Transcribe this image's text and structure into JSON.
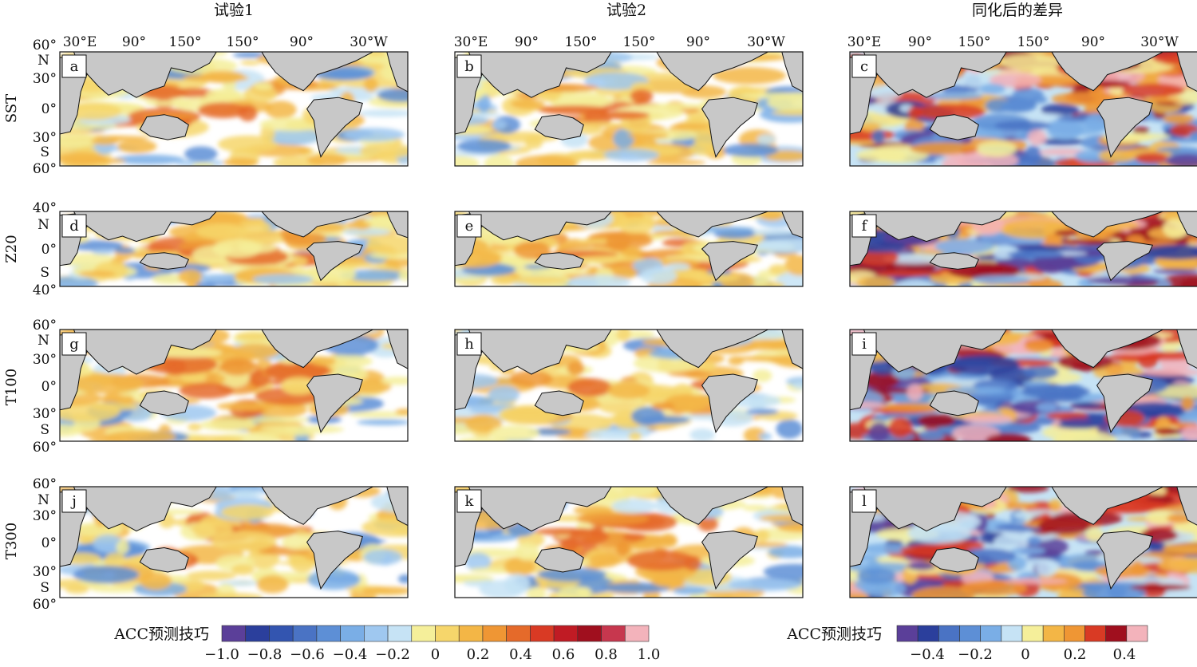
{
  "figure": {
    "column_titles": [
      "试验1",
      "试验2",
      "同化后的差异"
    ],
    "row_labels": [
      "SST",
      "Z20",
      "T100",
      "T300"
    ],
    "lon_ticks": [
      "30°E",
      "90°",
      "150°",
      "150°",
      "90°",
      "30°W"
    ],
    "lat_ticks_60": [
      "60°",
      "N",
      "30°",
      "0°",
      "30°",
      "S",
      "60°"
    ],
    "lat_ticks_40": [
      "40°",
      "N",
      "0°",
      "S",
      "40°"
    ],
    "panel_letters": [
      "a",
      "b",
      "c",
      "d",
      "e",
      "f",
      "g",
      "h",
      "i",
      "j",
      "k",
      "l"
    ]
  },
  "chart_data": {
    "type": "heatmap",
    "panels": [
      {
        "letter": "a",
        "row": "SST",
        "column": "试验1",
        "lat_range": [
          -60,
          60
        ]
      },
      {
        "letter": "b",
        "row": "SST",
        "column": "试验2",
        "lat_range": [
          -60,
          60
        ]
      },
      {
        "letter": "c",
        "row": "SST",
        "column": "同化后的差异",
        "lat_range": [
          -60,
          60
        ]
      },
      {
        "letter": "d",
        "row": "Z20",
        "column": "试验1",
        "lat_range": [
          -40,
          40
        ]
      },
      {
        "letter": "e",
        "row": "Z20",
        "column": "试验2",
        "lat_range": [
          -40,
          40
        ]
      },
      {
        "letter": "f",
        "row": "Z20",
        "column": "同化后的差异",
        "lat_range": [
          -40,
          40
        ]
      },
      {
        "letter": "g",
        "row": "T100",
        "column": "试验1",
        "lat_range": [
          -60,
          60
        ]
      },
      {
        "letter": "h",
        "row": "T100",
        "column": "试验2",
        "lat_range": [
          -60,
          60
        ]
      },
      {
        "letter": "i",
        "row": "T100",
        "column": "同化后的差异",
        "lat_range": [
          -60,
          60
        ]
      },
      {
        "letter": "j",
        "row": "T300",
        "column": "试验1",
        "lat_range": [
          -60,
          60
        ]
      },
      {
        "letter": "k",
        "row": "T300",
        "column": "试验2",
        "lat_range": [
          -60,
          60
        ]
      },
      {
        "letter": "l",
        "row": "T300",
        "column": "同化后的差异",
        "lat_range": [
          -60,
          60
        ]
      }
    ],
    "colorbar_skill": {
      "label": "ACC预测技巧",
      "tick_labels": [
        "−1.0",
        "−0.8",
        "−0.6",
        "−0.4",
        "−0.2",
        "0",
        "0.2",
        "0.4",
        "0.6",
        "0.8",
        "1.0"
      ],
      "range": [
        -1.0,
        1.0
      ],
      "colors": [
        "#5b3f99",
        "#2b3f9c",
        "#3355b0",
        "#4a73c4",
        "#5d8fd6",
        "#7aaee6",
        "#9fc8f0",
        "#c6e3f5",
        "#f5ef9a",
        "#f6d66b",
        "#f3b646",
        "#ef9634",
        "#e56a2a",
        "#d93a24",
        "#c01b24",
        "#a00f1e",
        "#c7374e",
        "#f3b3bb"
      ]
    },
    "colorbar_diff": {
      "label": "ACC预测技巧",
      "tick_labels": [
        "−0.4",
        "−0.2",
        "0",
        "0.2",
        "0.4"
      ],
      "range": [
        -0.5,
        0.5
      ],
      "colors": [
        "#5b3f99",
        "#2b3f9c",
        "#4a73c4",
        "#5d8fd6",
        "#7aaee6",
        "#c6e3f5",
        "#f5ef9a",
        "#f3b646",
        "#ef9634",
        "#d93a24",
        "#a00f1e",
        "#f3b3bb"
      ]
    }
  }
}
